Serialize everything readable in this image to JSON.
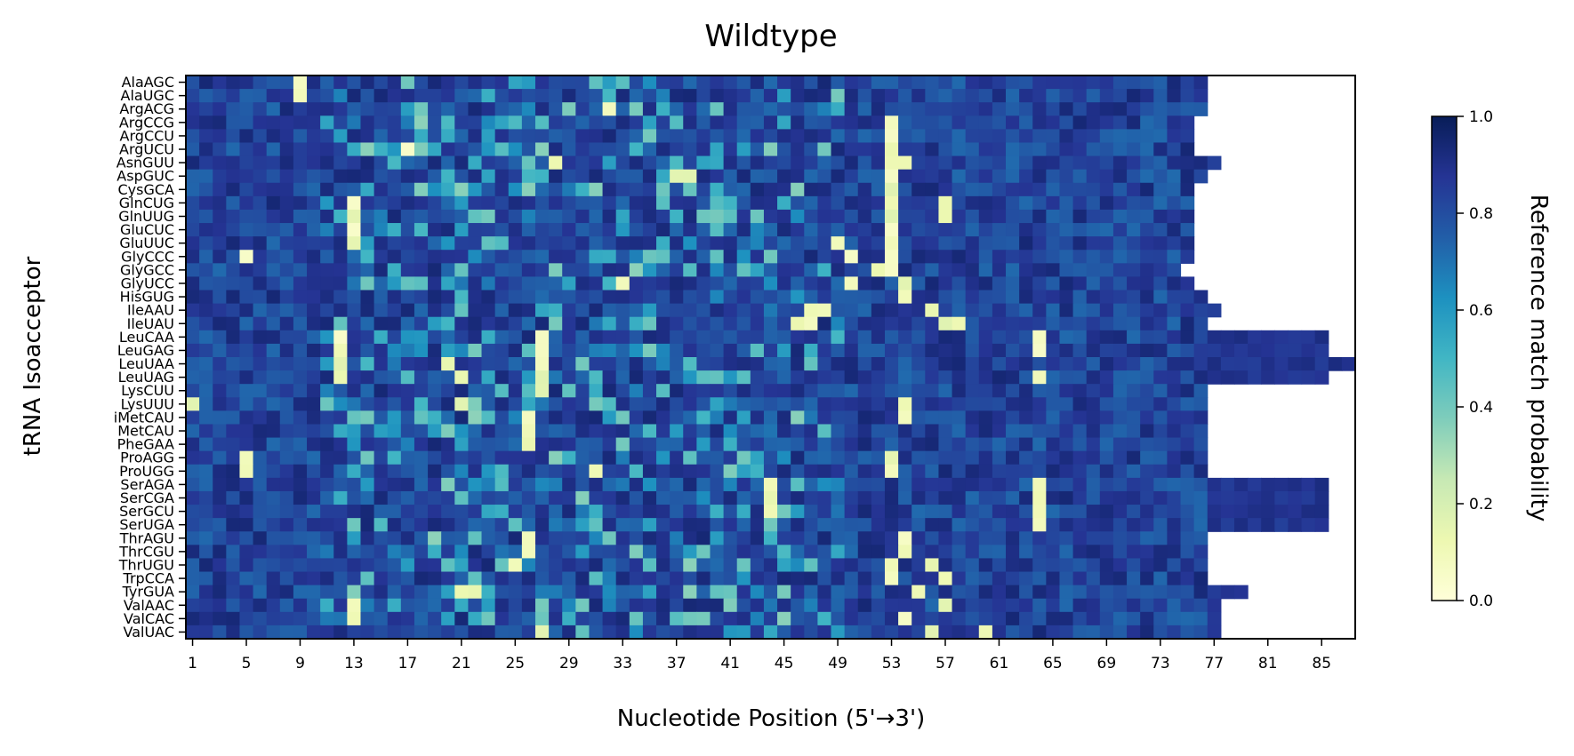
{
  "chart_data": {
    "type": "heatmap",
    "title": "Wildtype",
    "xlabel": "Nucleotide Position (5'→3')",
    "ylabel": "tRNA Isoacceptor",
    "x_range": [
      1,
      87
    ],
    "x_ticks": [
      "1",
      "5",
      "9",
      "13",
      "17",
      "21",
      "25",
      "29",
      "33",
      "37",
      "41",
      "45",
      "49",
      "53",
      "57",
      "61",
      "65",
      "69",
      "73",
      "77",
      "81",
      "85"
    ],
    "rows": [
      "AlaAGC",
      "AlaUGC",
      "ArgACG",
      "ArgCCG",
      "ArgCCU",
      "ArgUCU",
      "AsnGUU",
      "AspGUC",
      "CysGCA",
      "GlnCUG",
      "GlnUUG",
      "GluCUC",
      "GluUUC",
      "GlyCCC",
      "GlyGCC",
      "GlyUCC",
      "HisGUG",
      "IleAAU",
      "IleUAU",
      "LeuCAA",
      "LeuGAG",
      "LeuUAA",
      "LeuUAG",
      "LysCUU",
      "LysUUU",
      "iMetCAU",
      "MetCAU",
      "PheGAA",
      "ProAGG",
      "ProUGG",
      "SerAGA",
      "SerCGA",
      "SerGCU",
      "SerUGA",
      "ThrAGU",
      "ThrCGU",
      "ThrUGU",
      "TrpCCA",
      "TyrGUA",
      "ValAAC",
      "ValCAC",
      "ValUAC"
    ],
    "row_lengths": [
      76,
      76,
      76,
      75,
      75,
      75,
      77,
      76,
      75,
      75,
      75,
      75,
      75,
      75,
      74,
      75,
      76,
      77,
      76,
      85,
      85,
      87,
      85,
      76,
      76,
      76,
      76,
      76,
      76,
      76,
      85,
      85,
      85,
      85,
      76,
      76,
      76,
      76,
      79,
      77,
      77,
      77
    ],
    "colorbar": {
      "label": "Reference match probability",
      "range": [
        0.0,
        1.0
      ],
      "ticks": [
        "0.0",
        "0.2",
        "0.4",
        "0.6",
        "0.8",
        "1.0"
      ],
      "colormap": "YlGnBu",
      "stops": [
        "#ffffd9",
        "#edf8b1",
        "#c7e9b4",
        "#7fcdbb",
        "#41b6c4",
        "#1d91c0",
        "#225ea8",
        "#253494",
        "#081d58"
      ]
    },
    "low_value_cells": [
      [
        1,
        9
      ],
      [
        2,
        9
      ],
      [
        3,
        32
      ],
      [
        4,
        53
      ],
      [
        5,
        53
      ],
      [
        6,
        53
      ],
      [
        6,
        17
      ],
      [
        7,
        28
      ],
      [
        7,
        53
      ],
      [
        7,
        54
      ],
      [
        8,
        37
      ],
      [
        8,
        38
      ],
      [
        8,
        53
      ],
      [
        9,
        53
      ],
      [
        10,
        13
      ],
      [
        10,
        53
      ],
      [
        10,
        57
      ],
      [
        11,
        13
      ],
      [
        11,
        53
      ],
      [
        11,
        57
      ],
      [
        12,
        13
      ],
      [
        12,
        53
      ],
      [
        13,
        13
      ],
      [
        13,
        49
      ],
      [
        13,
        53
      ],
      [
        14,
        5
      ],
      [
        14,
        50
      ],
      [
        14,
        53
      ],
      [
        15,
        52
      ],
      [
        15,
        53
      ],
      [
        16,
        33
      ],
      [
        16,
        50
      ],
      [
        16,
        54
      ],
      [
        17,
        54
      ],
      [
        18,
        47
      ],
      [
        18,
        48
      ],
      [
        18,
        56
      ],
      [
        19,
        46
      ],
      [
        19,
        47
      ],
      [
        19,
        57
      ],
      [
        19,
        58
      ],
      [
        20,
        12
      ],
      [
        20,
        27
      ],
      [
        20,
        64
      ],
      [
        21,
        12
      ],
      [
        21,
        27
      ],
      [
        21,
        64
      ],
      [
        22,
        12
      ],
      [
        22,
        27
      ],
      [
        22,
        20
      ],
      [
        23,
        12
      ],
      [
        23,
        27
      ],
      [
        23,
        21
      ],
      [
        23,
        64
      ],
      [
        24,
        27
      ],
      [
        25,
        1
      ],
      [
        25,
        21
      ],
      [
        25,
        54
      ],
      [
        26,
        26
      ],
      [
        26,
        54
      ],
      [
        27,
        26
      ],
      [
        28,
        26
      ],
      [
        29,
        53
      ],
      [
        29,
        5
      ],
      [
        30,
        5
      ],
      [
        30,
        53
      ],
      [
        30,
        31
      ],
      [
        31,
        64
      ],
      [
        31,
        44
      ],
      [
        32,
        64
      ],
      [
        32,
        44
      ],
      [
        33,
        64
      ],
      [
        33,
        44
      ],
      [
        34,
        64
      ],
      [
        35,
        26
      ],
      [
        35,
        54
      ],
      [
        36,
        26
      ],
      [
        36,
        54
      ],
      [
        37,
        25
      ],
      [
        37,
        53
      ],
      [
        37,
        56
      ],
      [
        38,
        53
      ],
      [
        38,
        57
      ],
      [
        39,
        21
      ],
      [
        39,
        22
      ],
      [
        39,
        55
      ],
      [
        40,
        13
      ],
      [
        40,
        57
      ],
      [
        41,
        13
      ],
      [
        41,
        54
      ],
      [
        42,
        27
      ],
      [
        42,
        56
      ],
      [
        42,
        60
      ]
    ]
  }
}
